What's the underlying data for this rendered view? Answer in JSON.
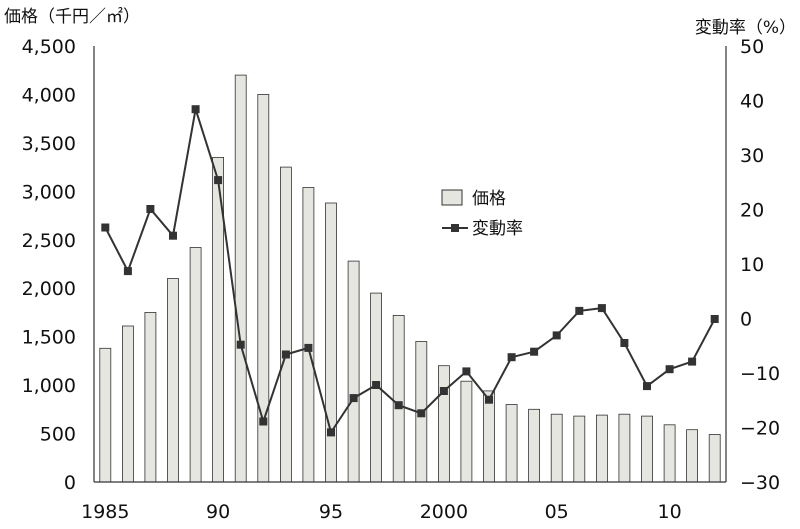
{
  "chart_data": {
    "type": "bar+line",
    "left_axis_label": "価格（千円／㎡）",
    "right_axis_label": "変動率（%）",
    "x": [
      1985,
      1986,
      1987,
      1988,
      1989,
      1990,
      1991,
      1992,
      1993,
      1994,
      1995,
      1996,
      1997,
      1998,
      1999,
      2000,
      2001,
      2002,
      2003,
      2004,
      2005,
      2006,
      2007,
      2008,
      2009,
      2010,
      2011,
      2012
    ],
    "x_tick_labels": [
      "1985",
      "90",
      "95",
      "2000",
      "05",
      "10"
    ],
    "y_left_ticks": [
      "0",
      "500",
      "1,000",
      "1,500",
      "2,000",
      "2,500",
      "3,000",
      "3,500",
      "4,000",
      "4,500"
    ],
    "y_right_ticks": [
      "−30",
      "−20",
      "−10",
      "0",
      "10",
      "20",
      "30",
      "40",
      "50"
    ],
    "y_left_range": [
      0,
      4500
    ],
    "y_right_range": [
      -30,
      50
    ],
    "grid": false,
    "legend_position": "center-right",
    "series": [
      {
        "name": "価格",
        "type": "bar",
        "axis": "left",
        "fill": "#e6e6e0",
        "stroke": "#333333",
        "values": [
          1380,
          1610,
          1750,
          2100,
          2420,
          3350,
          4200,
          4000,
          3250,
          3040,
          2880,
          2280,
          1950,
          1720,
          1450,
          1200,
          1040,
          940,
          800,
          750,
          700,
          680,
          690,
          700,
          680,
          590,
          540,
          490
        ]
      },
      {
        "name": "変動率",
        "type": "line",
        "axis": "right",
        "color": "#333333",
        "marker": "square",
        "values": [
          16.7,
          8.7,
          20.1,
          15.2,
          38.4,
          25.4,
          -4.8,
          -18.9,
          -6.6,
          -5.4,
          -20.9,
          -14.6,
          -12.2,
          -15.9,
          -17.4,
          -13.3,
          -9.7,
          -14.9,
          -7.1,
          -6.1,
          -3.1,
          1.4,
          1.9,
          -4.5,
          -12.4,
          -9.3,
          -7.9,
          -0.1
        ]
      }
    ]
  }
}
